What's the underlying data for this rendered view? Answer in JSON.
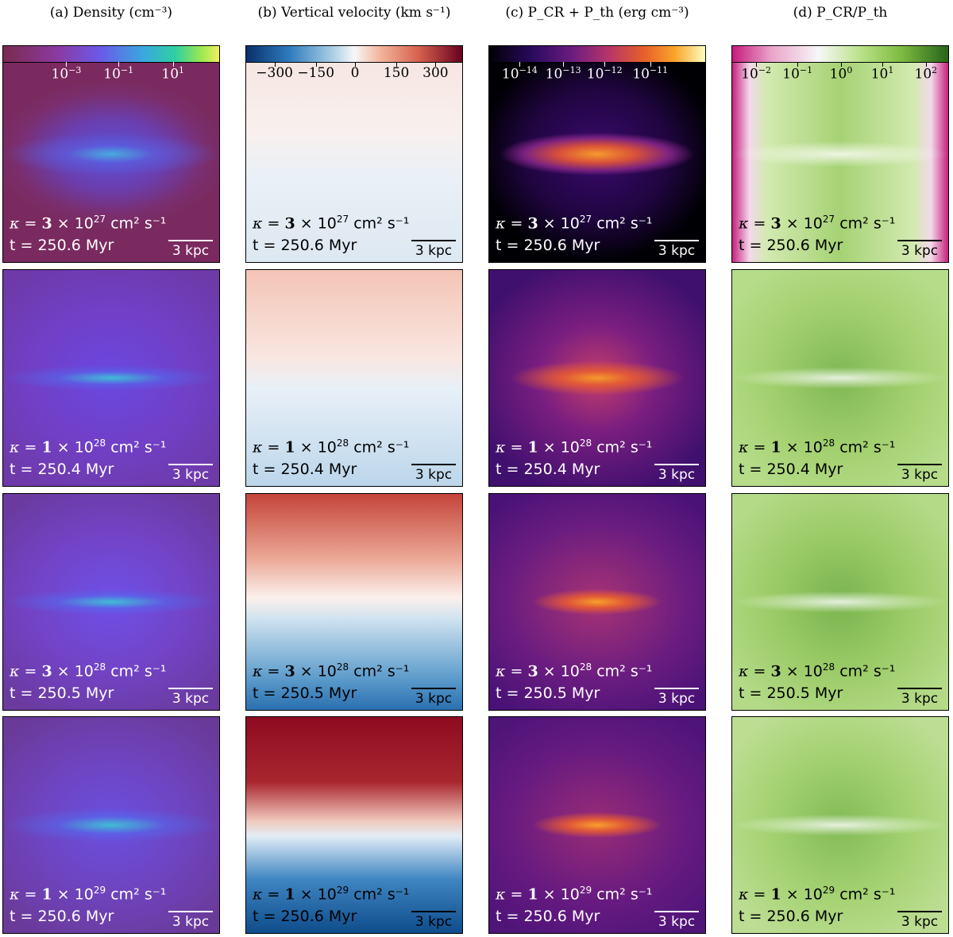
{
  "columns": [
    {
      "title": "(a) Density (cm⁻³)",
      "tick_labels": [
        "10",
        "10",
        "10"
      ],
      "tick_exps": [
        "−3",
        "−1",
        "1"
      ]
    },
    {
      "title": "(b) Vertical velocity (km s⁻¹)",
      "tick_labels": [
        "−300",
        "−150",
        "0",
        "150",
        "300"
      ]
    },
    {
      "title": "(c) P_CR + P_th (erg cm⁻³)",
      "tick_labels": [
        "10",
        "10",
        "10",
        "10"
      ],
      "tick_exps": [
        "−14",
        "−13",
        "−12",
        "−11"
      ]
    },
    {
      "title": "(d) P_CR/P_th",
      "tick_labels": [
        "10",
        "10",
        "10",
        "10",
        "10"
      ],
      "tick_exps": [
        "−2",
        "−1",
        "0",
        "1",
        "2"
      ]
    }
  ],
  "rows": [
    {
      "kappa_mant": "3",
      "kappa_exp": "27",
      "time": "t = 250.6 Myr"
    },
    {
      "kappa_mant": "1",
      "kappa_exp": "28",
      "time": "t = 250.4 Myr"
    },
    {
      "kappa_mant": "3",
      "kappa_exp": "28",
      "time": "t = 250.5 Myr"
    },
    {
      "kappa_mant": "1",
      "kappa_exp": "29",
      "time": "t = 250.6 Myr"
    }
  ],
  "labels": {
    "kappa_prefix": "κ = ",
    "times": " × 10",
    "unit": " cm² s⁻¹",
    "scale": "3 kpc"
  }
}
